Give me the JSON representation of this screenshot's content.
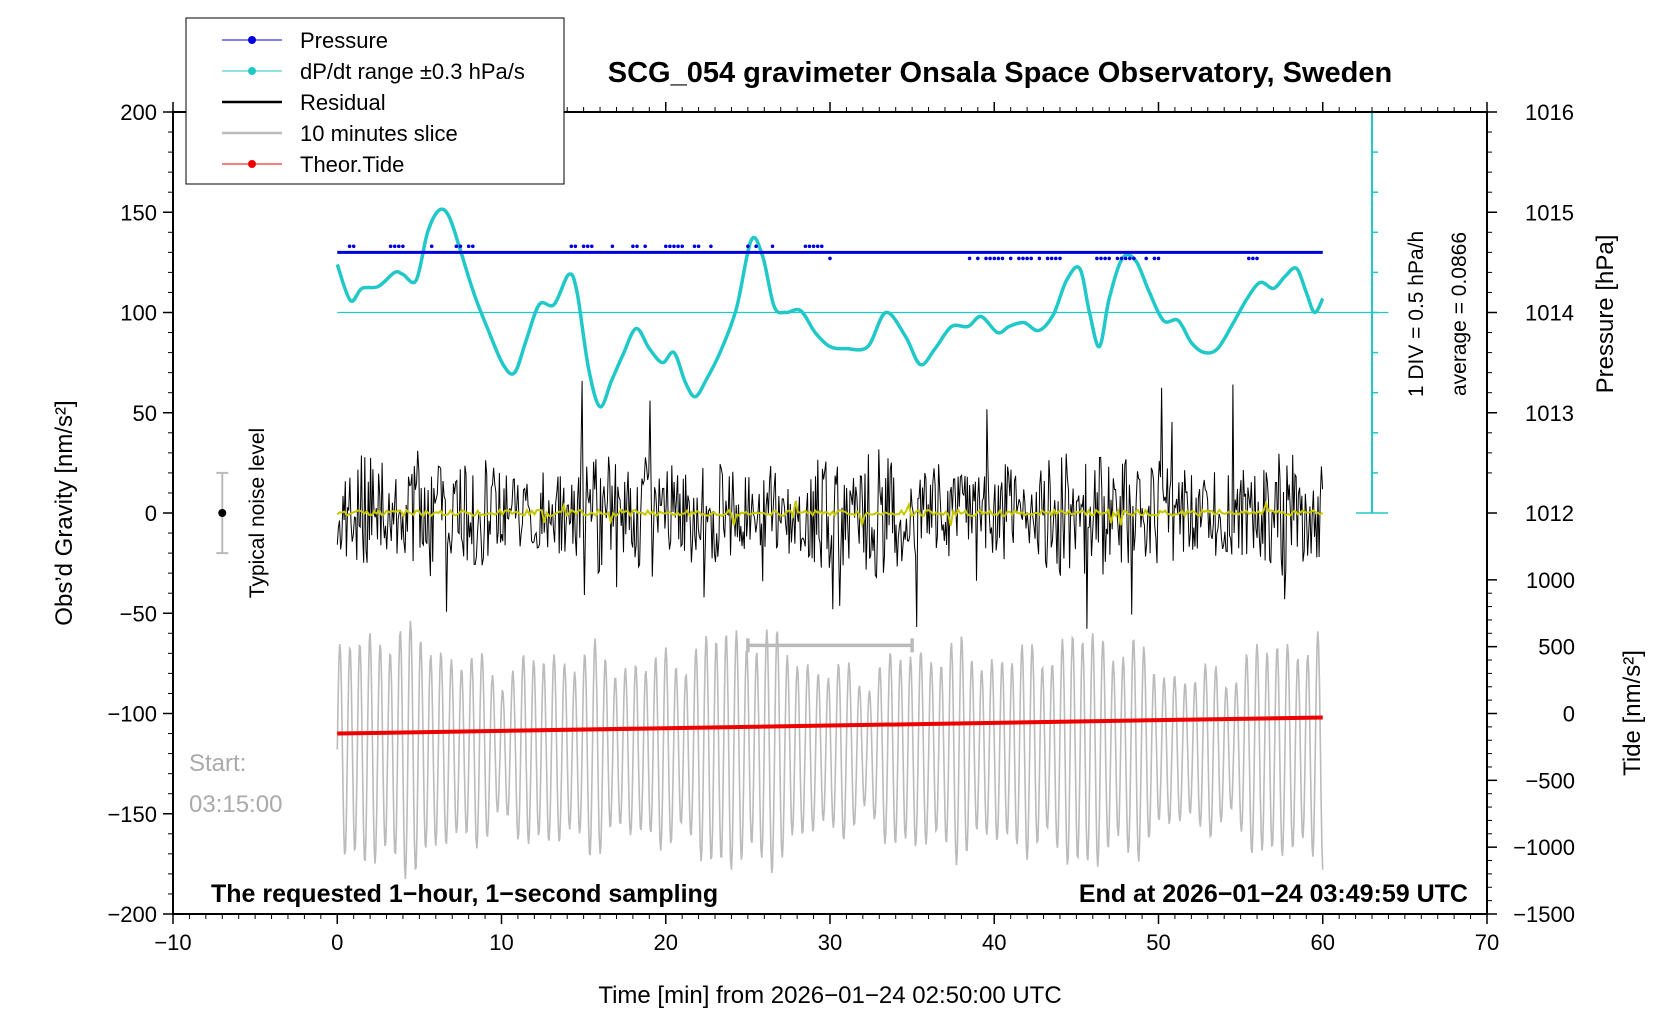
{
  "chart_data": {
    "type": "line",
    "title": "SCG_054 gravimeter Onsala Space Observatory, Sweden",
    "xlabel": "Time [min] from 2026−01−24 02:50:00 UTC",
    "ylabel_left": "Obs’d Gravity [nm/s²]",
    "ylabel_pressure": "Pressure [hPa]",
    "ylabel_tide": "Tide [nm/s²]",
    "xlim": [
      -10,
      70
    ],
    "ylim": [
      -200,
      200
    ],
    "x_ticks": [
      -10,
      0,
      10,
      20,
      30,
      40,
      50,
      60,
      70
    ],
    "x_tick_labels": [
      "−10",
      "0",
      "10",
      "20",
      "30",
      "40",
      "50",
      "60",
      "70"
    ],
    "y_ticks": [
      -200,
      -150,
      -100,
      -50,
      0,
      50,
      100,
      150,
      200
    ],
    "y_tick_labels": [
      "−200",
      "−150",
      "−100",
      "−50",
      "0",
      "50",
      "100",
      "150",
      "200"
    ],
    "pressure_axis": {
      "ticks": [
        1012,
        1013,
        1014,
        1015,
        1016
      ],
      "tick_labels": [
        "1012",
        "1013",
        "1014",
        "1015",
        "1016"
      ],
      "value_at_gravity_100": 1014,
      "hpa_per_gravity_unit": 0.02
    },
    "tide_axis": {
      "ticks": [
        -1500,
        -1000,
        -500,
        0,
        500,
        1000
      ],
      "tick_labels": [
        "−1500",
        "−1000",
        "−500",
        "0",
        "500",
        "1000"
      ],
      "value_at_gravity_minus100": 0,
      "tide_per_gravity_unit": 15
    },
    "legend": [
      {
        "label": "Pressure",
        "color": "#0000dd",
        "marker": true
      },
      {
        "label": "dP/dt range ±0.3 hPa/s",
        "color": "#20c8c8",
        "marker": true
      },
      {
        "label": "Residual",
        "color": "#000000",
        "marker": false
      },
      {
        "label": "10 minutes slice",
        "color": "#bbbbbb",
        "marker": false
      },
      {
        "label": "Theor.Tide",
        "color": "#ee0000",
        "marker": true
      }
    ],
    "colors": {
      "pressure": "#0000dd",
      "dpdt": "#20c8c8",
      "residual": "#000000",
      "slice": "#bbbbbb",
      "smooth": "#c8c800",
      "tide": "#ee0000",
      "noise_bar": "#bbbbbb"
    },
    "pressure_series": {
      "x_range": [
        0,
        60
      ],
      "base_gravity_units": 130,
      "outlier_levels": [
        127,
        133
      ]
    },
    "dpdt_series": {
      "x": [
        0,
        0.8,
        1.5,
        2.5,
        3.5,
        4,
        4.8,
        5.5,
        6.2,
        6.8,
        7.5,
        8.3,
        9.2,
        10.1,
        10.8,
        11.5,
        12.3,
        13.2,
        14.1,
        14.6,
        15.3,
        16.0,
        16.7,
        17.4,
        18.2,
        19.0,
        19.8,
        20.5,
        21.2,
        21.8,
        22.5,
        23.3,
        24.3,
        25.2,
        25.9,
        26.6,
        27.3,
        28.2,
        29.1,
        30.0,
        31.0,
        32.3,
        33.4,
        34.6,
        35.5,
        36.4,
        37.4,
        38.4,
        39.2,
        40.2,
        40.9,
        41.8,
        42.7,
        43.6,
        44.4,
        45.2,
        45.8,
        46.4,
        47.0,
        47.8,
        48.6,
        49.4,
        50.3,
        51.2,
        52.0,
        52.8,
        53.6,
        54.5,
        55.4,
        56.2,
        57.0,
        57.7,
        58.4,
        59.0,
        59.5,
        60.0
      ],
      "y": [
        124,
        106,
        112,
        113,
        120,
        119,
        116,
        140,
        151,
        148,
        131,
        110,
        91,
        74,
        70,
        86,
        104,
        104,
        119,
        110,
        72,
        53,
        66,
        79,
        92,
        82,
        75,
        80,
        65,
        58,
        67,
        80,
        102,
        136,
        128,
        103,
        100,
        101,
        90,
        83,
        82,
        83,
        100,
        88,
        74,
        82,
        93,
        93,
        98,
        90,
        93,
        95,
        91,
        99,
        116,
        122,
        100,
        83,
        107,
        127,
        126,
        111,
        96,
        96,
        85,
        80,
        82,
        94,
        107,
        115,
        112,
        118,
        122,
        110,
        100,
        107
      ],
      "reference_line": 100
    },
    "residual_series": {
      "x_range": [
        0,
        60
      ],
      "sample_spacing_min": 0.07,
      "typical_amplitude": 20,
      "max_amplitude": 75,
      "smoothed_line_amplitude": 5
    },
    "tide_series": {
      "x": [
        0,
        60
      ],
      "y": [
        -110,
        -102
      ]
    },
    "slice_series": {
      "x_range": [
        0,
        60
      ],
      "center": -118,
      "typical_amplitude": 25,
      "max_amplitude": 60,
      "period_min": 0.62
    },
    "slice_marker": {
      "x_start": 25,
      "x_end": 35,
      "y": -66
    },
    "noise_level": {
      "x": -7,
      "y": 0,
      "half_range": 20,
      "label": "Typical noise level"
    },
    "pressure_scale_bar": {
      "x": 63,
      "y_top": 200,
      "y_bottom": 0,
      "label_div": "1 DIV = 0.5 hPa/h",
      "label_avg": "average = 0.0866"
    },
    "annotations": {
      "start_label": "Start:",
      "start_time": "03:15:00",
      "bottom_left": "The requested 1−hour, 1−second sampling",
      "bottom_right": "End at 2026−01−24 03:49:59 UTC"
    }
  }
}
